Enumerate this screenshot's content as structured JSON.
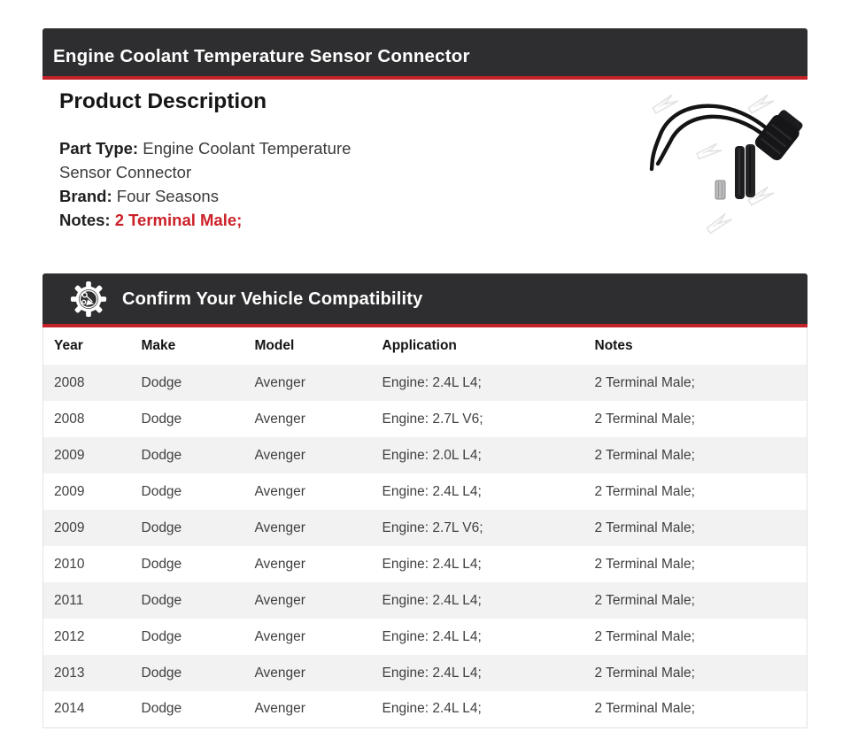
{
  "colors": {
    "bar_bg": "#2e2d2f",
    "accent_red": "#c42129",
    "notes_red": "#cb2129",
    "row_alt_bg": "#f2f2f2",
    "table_border": "#e3e3e3"
  },
  "product_header": {
    "title": "Engine Coolant Temperature Sensor Connector"
  },
  "description": {
    "heading": "Product Description",
    "fields": [
      {
        "label": "Part Type:",
        "value": "Engine Coolant Temperature Sensor Connector"
      },
      {
        "label": "Brand:",
        "value": "Four Seasons"
      },
      {
        "label": "Notes:",
        "value": "2 Terminal Male;"
      }
    ]
  },
  "product_image": {
    "photo": "connector pigtail kit with two wires, two heat-shrink tubes and metal terminal"
  },
  "compatibility": {
    "title": "Confirm Your Vehicle Compatibility",
    "icon": "gear-icon",
    "table": {
      "columns": [
        "Year",
        "Make",
        "Model",
        "Application",
        "Notes"
      ],
      "keys": [
        "year",
        "make",
        "model",
        "application",
        "notes"
      ],
      "rows": [
        {
          "year": "2008",
          "make": "Dodge",
          "model": "Avenger",
          "application": "Engine: 2.4L L4;",
          "notes": "2 Terminal Male;"
        },
        {
          "year": "2008",
          "make": "Dodge",
          "model": "Avenger",
          "application": "Engine: 2.7L V6;",
          "notes": "2 Terminal Male;"
        },
        {
          "year": "2009",
          "make": "Dodge",
          "model": "Avenger",
          "application": "Engine: 2.0L L4;",
          "notes": "2 Terminal Male;"
        },
        {
          "year": "2009",
          "make": "Dodge",
          "model": "Avenger",
          "application": "Engine: 2.4L L4;",
          "notes": "2 Terminal Male;"
        },
        {
          "year": "2009",
          "make": "Dodge",
          "model": "Avenger",
          "application": "Engine: 2.7L V6;",
          "notes": "2 Terminal Male;"
        },
        {
          "year": "2010",
          "make": "Dodge",
          "model": "Avenger",
          "application": "Engine: 2.4L L4;",
          "notes": "2 Terminal Male;"
        },
        {
          "year": "2011",
          "make": "Dodge",
          "model": "Avenger",
          "application": "Engine: 2.4L L4;",
          "notes": "2 Terminal Male;"
        },
        {
          "year": "2012",
          "make": "Dodge",
          "model": "Avenger",
          "application": "Engine: 2.4L L4;",
          "notes": "2 Terminal Male;"
        },
        {
          "year": "2013",
          "make": "Dodge",
          "model": "Avenger",
          "application": "Engine: 2.4L L4;",
          "notes": "2 Terminal Male;"
        },
        {
          "year": "2014",
          "make": "Dodge",
          "model": "Avenger",
          "application": "Engine: 2.4L L4;",
          "notes": "2 Terminal Male;"
        }
      ]
    }
  }
}
